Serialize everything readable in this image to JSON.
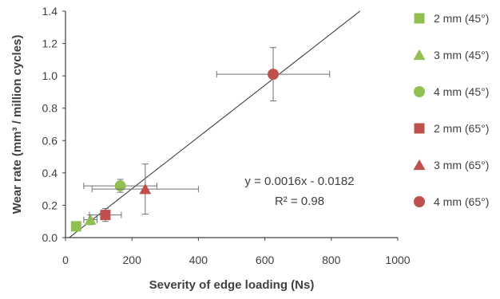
{
  "chart_data": {
    "type": "scatter",
    "xlabel": "Severity of edge loading (Ns)",
    "ylabel": "Wear rate (mm³ / million cycles)",
    "xlim": [
      0,
      1000
    ],
    "ylim": [
      0,
      1.4
    ],
    "x_ticks": [
      "0",
      "200",
      "400",
      "600",
      "800",
      "1000"
    ],
    "y_ticks": [
      "0.0",
      "0.2",
      "0.4",
      "0.6",
      "0.8",
      "1.0",
      "1.2",
      "1.4"
    ],
    "x_tick_values": [
      0,
      200,
      400,
      600,
      800,
      1000
    ],
    "y_tick_values": [
      0,
      0.2,
      0.4,
      0.6,
      0.8,
      1.0,
      1.2,
      1.4
    ],
    "grid": false,
    "legend_position": "right",
    "series": [
      {
        "name": "2 mm (45°)",
        "marker": "square",
        "color": "#92c050",
        "points": [
          {
            "x": 32,
            "y": 0.07,
            "xerr": 8,
            "yerr": 0.02
          }
        ]
      },
      {
        "name": "3 mm (45°)",
        "marker": "triangle",
        "color": "#92c050",
        "points": [
          {
            "x": 75,
            "y": 0.11,
            "xerr": 20,
            "yerr": 0.03
          }
        ]
      },
      {
        "name": "4 mm (45°)",
        "marker": "circle",
        "color": "#92c050",
        "points": [
          {
            "x": 165,
            "y": 0.32,
            "xerr": 110,
            "yerr": 0.04
          }
        ]
      },
      {
        "name": "2 mm (65°)",
        "marker": "square",
        "color": "#c0504d",
        "points": [
          {
            "x": 120,
            "y": 0.14,
            "xerr": 48,
            "yerr": 0.04
          }
        ]
      },
      {
        "name": "3 mm (65°)",
        "marker": "triangle",
        "color": "#c0504d",
        "points": [
          {
            "x": 240,
            "y": 0.3,
            "xerr": 160,
            "yerr": 0.155
          }
        ]
      },
      {
        "name": "4 mm (65°)",
        "marker": "circle",
        "color": "#c0504d",
        "points": [
          {
            "x": 625,
            "y": 1.01,
            "xerr": 170,
            "yerr": 0.165
          }
        ]
      }
    ],
    "trendline": {
      "slope": 0.0016,
      "intercept": -0.0182,
      "x_range": [
        11.4,
        886.4
      ],
      "color": "#404040",
      "equation_text": "y = 0.0016x - 0.0182",
      "r2_text": "R² = 0.98"
    }
  }
}
